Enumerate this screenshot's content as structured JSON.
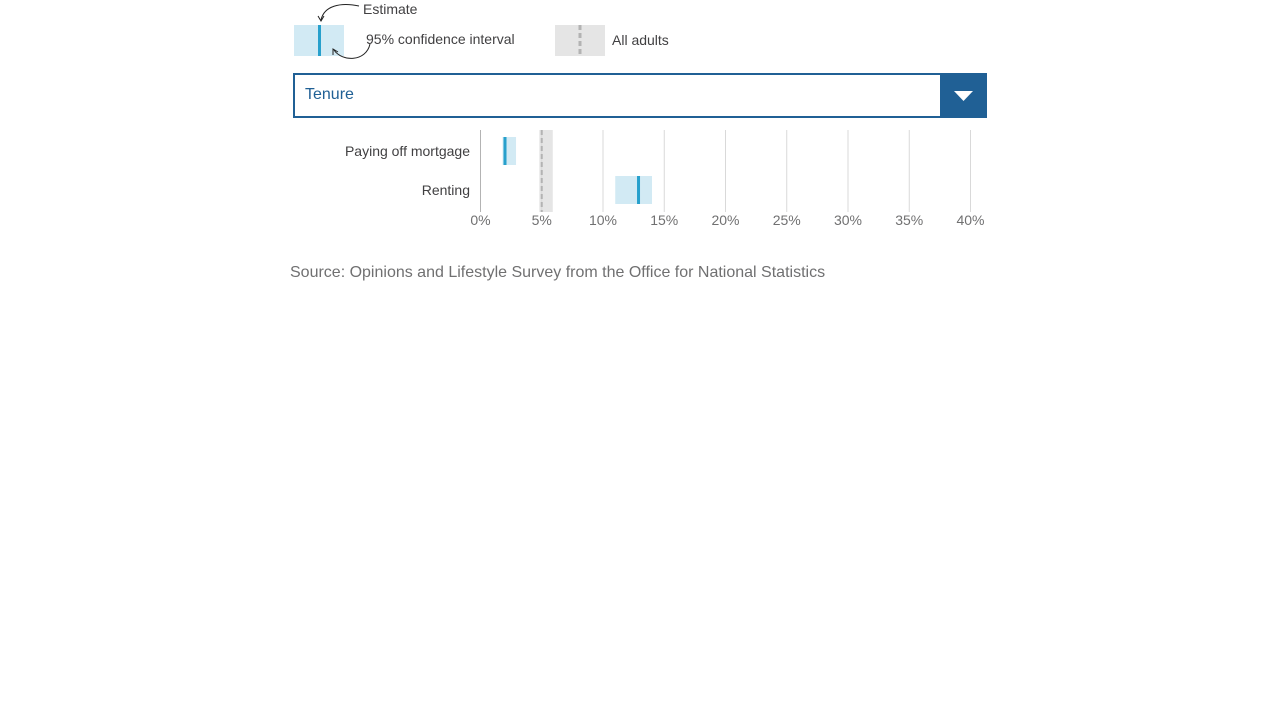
{
  "legend": {
    "estimate_label": "Estimate",
    "ci_label": "95% confidence interval",
    "all_adults_label": "All adults"
  },
  "dropdown": {
    "selected": "Tenure"
  },
  "colors": {
    "ci_fill": "#d2eaf4",
    "estimate": "#27a0cc",
    "all_adults_band": "#e5e5e5",
    "all_adults_line": "#b3b3b3",
    "grid": "#d9d9d9",
    "accent": "#206095"
  },
  "chart_data": {
    "type": "range-dot",
    "title": "",
    "xlabel": "",
    "ylabel": "",
    "xlim": [
      0,
      40
    ],
    "x_ticks": [
      0,
      5,
      10,
      15,
      20,
      25,
      30,
      35,
      40
    ],
    "x_tick_labels": [
      "0%",
      "5%",
      "10%",
      "15%",
      "20%",
      "25%",
      "30%",
      "35%",
      "40%"
    ],
    "categories": [
      "Paying off mortgage",
      "Renting"
    ],
    "estimates": [
      2.0,
      12.9
    ],
    "ci_low": [
      1.8,
      11.0
    ],
    "ci_high": [
      2.9,
      14.0
    ],
    "all_adults": {
      "estimate": 5.0,
      "ci_low": 4.8,
      "ci_high": 5.9
    }
  },
  "source": "Source: Opinions and Lifestyle Survey from the Office for National Statistics"
}
